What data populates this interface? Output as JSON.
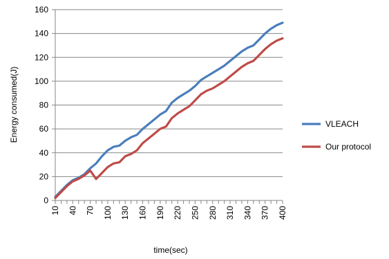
{
  "chart_data": {
    "type": "line",
    "title": "",
    "xlabel": "time(sec)",
    "ylabel": "Energy consumed(J)",
    "ylim": [
      0,
      160
    ],
    "yticks": [
      "0",
      "20",
      "40",
      "60",
      "80",
      "100",
      "120",
      "140",
      "160"
    ],
    "xtick_labels": [
      "10",
      "40",
      "70",
      "100",
      "130",
      "160",
      "190",
      "220",
      "250",
      "280",
      "310",
      "340",
      "370",
      "400"
    ],
    "grid": "horizontal",
    "legend_position": "right",
    "x": [
      10,
      20,
      30,
      40,
      50,
      60,
      70,
      80,
      90,
      100,
      110,
      120,
      130,
      140,
      150,
      160,
      170,
      180,
      190,
      200,
      210,
      220,
      230,
      240,
      250,
      260,
      270,
      280,
      290,
      300,
      310,
      320,
      330,
      340,
      350,
      360,
      370,
      380,
      390,
      400
    ],
    "series": [
      {
        "name": "VLEACH",
        "color": "#4a7ebb",
        "values": [
          3,
          8,
          13,
          17,
          19,
          22,
          27,
          31,
          37,
          42,
          45,
          46,
          50,
          53,
          55,
          60,
          64,
          68,
          72,
          75,
          82,
          86,
          89,
          92,
          96,
          101,
          104,
          107,
          110,
          113,
          117,
          121,
          125,
          128,
          130,
          135,
          140,
          144,
          147,
          149
        ]
      },
      {
        "name": "Our protocol",
        "color": "#be4b48",
        "values": [
          2,
          7,
          12,
          16,
          18,
          21,
          25,
          18,
          23,
          28,
          31,
          32,
          37,
          39,
          42,
          48,
          52,
          56,
          60,
          62,
          69,
          73,
          76,
          79,
          84,
          89,
          92,
          94,
          97,
          100,
          104,
          108,
          112,
          115,
          117,
          122,
          127,
          131,
          134,
          136
        ]
      }
    ]
  }
}
